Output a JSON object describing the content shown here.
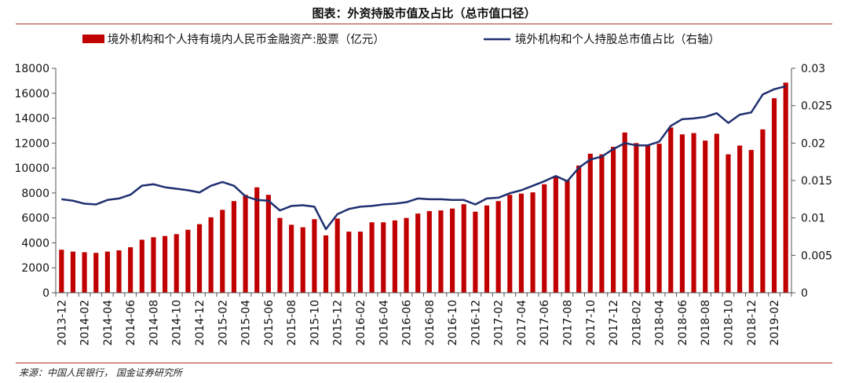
{
  "header": {
    "title": "图表：外资持股市值及占比（总市值口径）"
  },
  "footer": {
    "source": "来源：中国人民银行，  国金证券研究所"
  },
  "colors": {
    "bar": "#c00000",
    "line": "#1f3070",
    "rule": "#b0332c"
  },
  "chart_data": {
    "type": "bar",
    "title": "图表：外资持股市值及占比（总市值口径）",
    "categories": [
      "2013-12",
      "2014-01",
      "2014-02",
      "2014-03",
      "2014-04",
      "2014-05",
      "2014-06",
      "2014-07",
      "2014-08",
      "2014-09",
      "2014-10",
      "2014-11",
      "2014-12",
      "2015-01",
      "2015-02",
      "2015-03",
      "2015-04",
      "2015-05",
      "2015-06",
      "2015-07",
      "2015-08",
      "2015-09",
      "2015-10",
      "2015-11",
      "2015-12",
      "2016-01",
      "2016-02",
      "2016-03",
      "2016-04",
      "2016-05",
      "2016-06",
      "2016-07",
      "2016-08",
      "2016-09",
      "2016-10",
      "2016-11",
      "2016-12",
      "2017-01",
      "2017-02",
      "2017-03",
      "2017-04",
      "2017-05",
      "2017-06",
      "2017-07",
      "2017-08",
      "2017-09",
      "2017-10",
      "2017-11",
      "2017-12",
      "2018-01",
      "2018-02",
      "2018-03",
      "2018-04",
      "2018-05",
      "2018-06",
      "2018-07",
      "2018-08",
      "2018-09",
      "2018-10",
      "2018-11",
      "2018-12",
      "2019-01",
      "2019-02",
      "2019-03"
    ],
    "x_tick_labels": [
      "2013-12",
      "2014-02",
      "2014-04",
      "2014-06",
      "2014-08",
      "2014-10",
      "2014-12",
      "2015-02",
      "2015-04",
      "2015-06",
      "2015-08",
      "2015-10",
      "2015-12",
      "2016-02",
      "2016-04",
      "2016-06",
      "2016-08",
      "2016-10",
      "2016-12",
      "2017-02",
      "2017-04",
      "2017-06",
      "2017-08",
      "2017-10",
      "2017-12",
      "2018-02",
      "2018-04",
      "2018-06",
      "2018-08",
      "2018-10",
      "2018-12",
      "2019-02"
    ],
    "series": [
      {
        "name": "境外机构和个人持有境内人民币金融资产:股票（亿元）",
        "type": "bar",
        "axis": "left",
        "values": [
          3450,
          3300,
          3250,
          3200,
          3300,
          3400,
          3650,
          4250,
          4450,
          4550,
          4700,
          5050,
          5500,
          6050,
          6650,
          7350,
          7850,
          8450,
          7850,
          6000,
          5450,
          5250,
          5900,
          4600,
          5950,
          4900,
          4900,
          5650,
          5650,
          5800,
          6000,
          6350,
          6550,
          6600,
          6750,
          7100,
          6500,
          7000,
          7350,
          7850,
          7950,
          8050,
          8700,
          9300,
          9000,
          10200,
          11150,
          11100,
          11700,
          12850,
          12000,
          11850,
          11950,
          13250,
          12700,
          12800,
          12200,
          12750,
          11100,
          11800,
          11450,
          13100,
          15600,
          16850
        ]
      },
      {
        "name": "境外机构和个人持股总市值占比（右轴）",
        "type": "line",
        "axis": "right",
        "values": [
          0.0125,
          0.0123,
          0.0119,
          0.0118,
          0.0124,
          0.0126,
          0.0131,
          0.0143,
          0.0145,
          0.0141,
          0.0139,
          0.0137,
          0.0134,
          0.0143,
          0.0148,
          0.0143,
          0.0129,
          0.0124,
          0.0123,
          0.011,
          0.0116,
          0.0117,
          0.0115,
          0.0085,
          0.0105,
          0.0112,
          0.0115,
          0.0116,
          0.0118,
          0.0119,
          0.0121,
          0.0126,
          0.0125,
          0.0125,
          0.0124,
          0.0124,
          0.0118,
          0.0126,
          0.0127,
          0.0133,
          0.0137,
          0.0143,
          0.0149,
          0.0156,
          0.0149,
          0.0167,
          0.0178,
          0.0182,
          0.0192,
          0.02,
          0.0197,
          0.0197,
          0.0202,
          0.0223,
          0.0232,
          0.0233,
          0.0235,
          0.024,
          0.0227,
          0.0238,
          0.0241,
          0.0265,
          0.0272,
          0.0276
        ]
      }
    ],
    "y_left": {
      "min": 0,
      "max": 18000,
      "ticks": [
        "0",
        "2000",
        "4000",
        "6000",
        "8000",
        "10000",
        "12000",
        "14000",
        "16000",
        "18000"
      ]
    },
    "y_right": {
      "min": 0,
      "max": 0.03,
      "ticks": [
        "0",
        "0.005",
        "0.01",
        "0.015",
        "0.02",
        "0.025",
        "0.03"
      ]
    },
    "legend_position": "top",
    "grid": false
  }
}
